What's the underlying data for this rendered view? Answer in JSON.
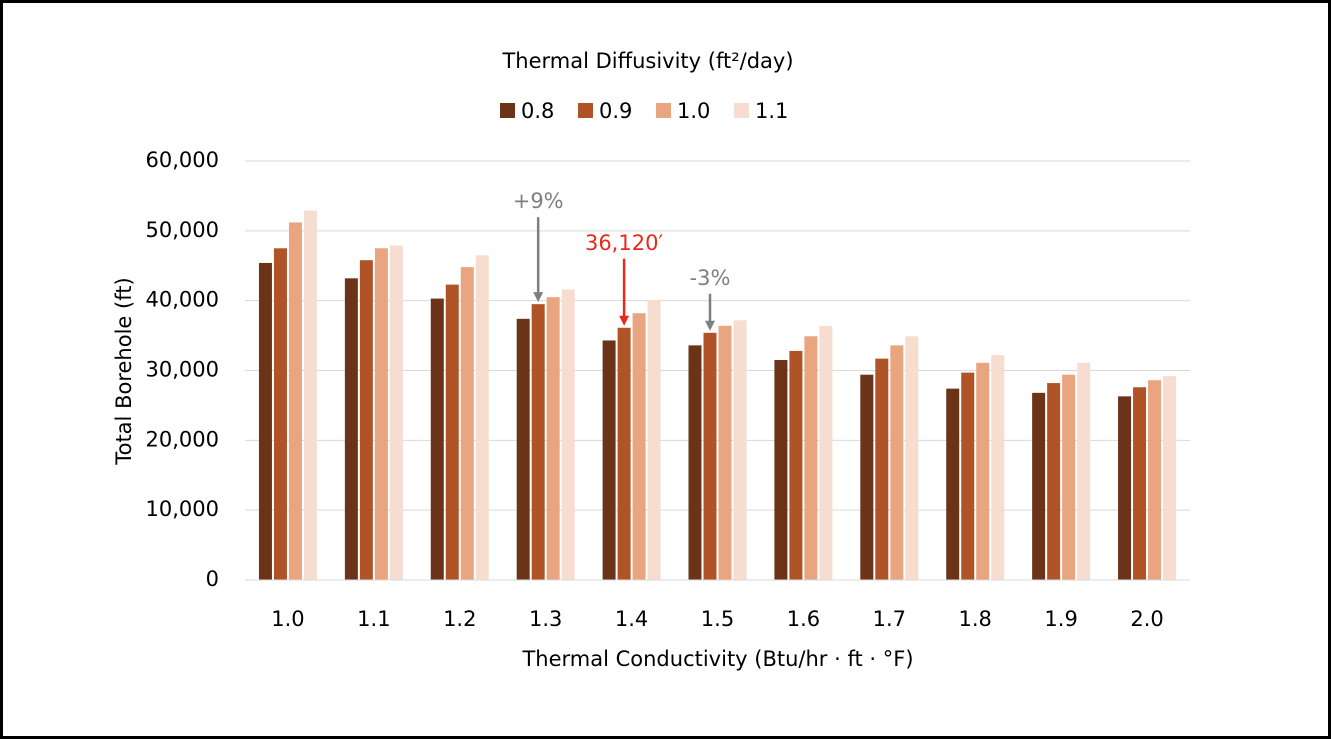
{
  "chart_data": {
    "type": "bar",
    "legend_title": "Thermal Diffusivity (ft²/day)",
    "x_label": "Thermal Conductivity (Btu/hr · ft · °F)",
    "y_label": "Total Borehole (ft)",
    "categories": [
      "1.0",
      "1.1",
      "1.2",
      "1.3",
      "1.4",
      "1.5",
      "1.6",
      "1.7",
      "1.8",
      "1.9",
      "2.0"
    ],
    "series": [
      {
        "name": "0.8",
        "color": "#6b3318",
        "values": [
          45400,
          43200,
          40300,
          37400,
          34300,
          33600,
          31500,
          29400,
          27400,
          26800,
          26300
        ]
      },
      {
        "name": "0.9",
        "color": "#b05428",
        "values": [
          47500,
          45800,
          42300,
          39500,
          36120,
          35400,
          32800,
          31700,
          29700,
          28200,
          27600
        ]
      },
      {
        "name": "1.0",
        "color": "#e8a57f",
        "values": [
          51200,
          47500,
          44800,
          40500,
          38200,
          36400,
          34900,
          33600,
          31100,
          29400,
          28600
        ]
      },
      {
        "name": "1.1",
        "color": "#f7ddd0",
        "values": [
          52900,
          47900,
          46500,
          41600,
          40100,
          37200,
          36400,
          34900,
          32200,
          31100,
          29200
        ]
      }
    ],
    "ylim": [
      0,
      60000
    ],
    "yticks": [
      0,
      {
        "value": 10000,
        "label": "10,000"
      },
      {
        "value": 20000,
        "label": "20,000"
      },
      {
        "value": 30000,
        "label": "30,000"
      },
      {
        "value": 40000,
        "label": "40,000"
      },
      {
        "value": 50000,
        "label": "50,000"
      },
      {
        "value": 60000,
        "label": "60,000"
      }
    ],
    "grid": true,
    "legend": "top",
    "annotations": [
      {
        "text": "+9%",
        "category": "1.3",
        "series": "0.9",
        "color": "#7f7f7f"
      },
      {
        "text": "36,120′",
        "category": "1.4",
        "series": "0.9",
        "color": "#e8291c"
      },
      {
        "text": "-3%",
        "category": "1.5",
        "series": "0.9",
        "color": "#7f7f7f"
      }
    ]
  }
}
